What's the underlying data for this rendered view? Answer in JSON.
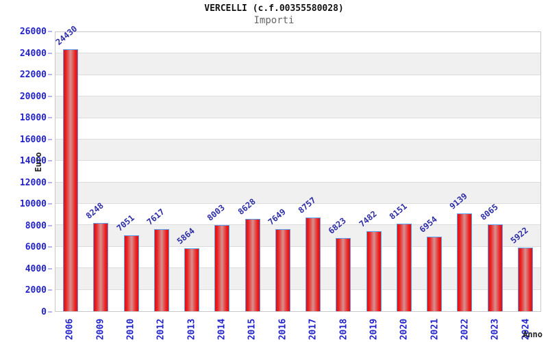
{
  "chart_data": {
    "type": "bar",
    "title": "VERCELLI (c.f.00355580028)",
    "subtitle": "Importi",
    "xlabel": "Anno",
    "ylabel": "Euro",
    "categories": [
      "2006",
      "2009",
      "2010",
      "2012",
      "2013",
      "2014",
      "2015",
      "2016",
      "2017",
      "2018",
      "2019",
      "2020",
      "2021",
      "2022",
      "2023",
      "2024"
    ],
    "values": [
      24430,
      8248,
      7051,
      7617,
      5864,
      8003,
      8628,
      7649,
      8757,
      6823,
      7482,
      8151,
      6954,
      9139,
      8065,
      5922
    ],
    "ylim": [
      0,
      26000
    ],
    "yticks": [
      0,
      2000,
      4000,
      6000,
      8000,
      10000,
      12000,
      14000,
      16000,
      18000,
      20000,
      22000,
      24000,
      26000
    ],
    "grid": "horizontal-bands",
    "legend": "none",
    "colors": {
      "bar_edge": "#e01010",
      "bar_center": "#d99090",
      "bar_border": "#58a0f0",
      "tick_label": "#2222cc",
      "value_label": "#2e2ea8",
      "band_gray": "#f0f0f0",
      "grid_line": "#dcdcdc",
      "plot_border": "#c8c8c8",
      "title": "#111111",
      "subtitle": "#666666",
      "axis_title": "#222222"
    }
  }
}
